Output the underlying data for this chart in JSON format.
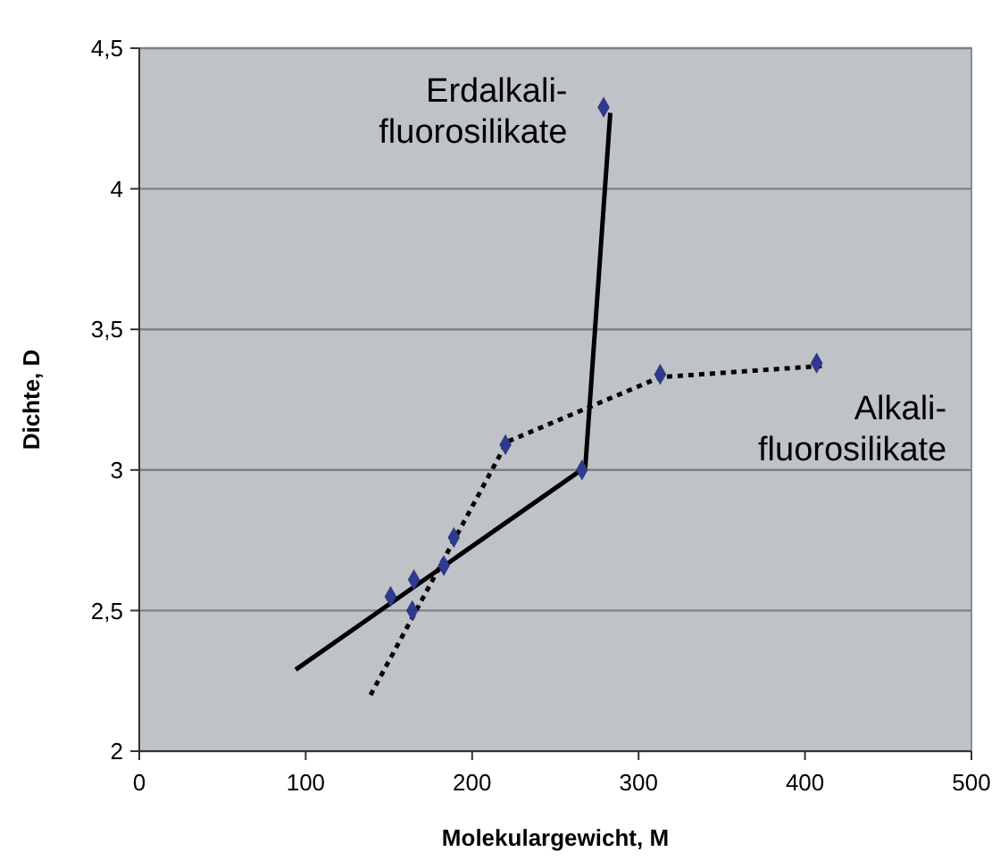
{
  "chart_data": {
    "type": "scatter",
    "xlabel": "Molekulargewicht, M",
    "ylabel": "Dichte, D",
    "xlim": [
      0,
      500
    ],
    "xticks": [
      0,
      100,
      200,
      300,
      400,
      500
    ],
    "ylim": [
      2,
      4.5
    ],
    "yticks": [
      {
        "value": 2,
        "label": "2"
      },
      {
        "value": 2.5,
        "label": "2,5"
      },
      {
        "value": 3,
        "label": "3"
      },
      {
        "value": 3.5,
        "label": "3,5"
      },
      {
        "value": 4,
        "label": "4"
      },
      {
        "value": 4.5,
        "label": "4,5"
      }
    ],
    "grid": "y",
    "series": [
      {
        "type": "line",
        "name": "Erdalkali-fluorosilikate",
        "color": "#000000",
        "line_style": "solid",
        "marker": "none",
        "x": [
          94,
          268,
          283
        ],
        "values": [
          2.29,
          3.01,
          4.27
        ]
      },
      {
        "type": "line",
        "name": "Alkali-fluorosilikate",
        "color": "#000000",
        "line_style": "dotted",
        "marker": "none",
        "x": [
          139,
          221,
          313,
          410
        ],
        "values": [
          2.2,
          3.1,
          3.33,
          3.37
        ]
      },
      {
        "color": "#2e3a8c",
        "marker": "diamond",
        "x": [
          151,
          165,
          164,
          183,
          189,
          220,
          266,
          279,
          313,
          407
        ],
        "values": [
          2.55,
          2.61,
          2.5,
          2.66,
          2.76,
          3.09,
          3,
          4.29,
          3.34,
          3.38
        ]
      }
    ]
  }
}
